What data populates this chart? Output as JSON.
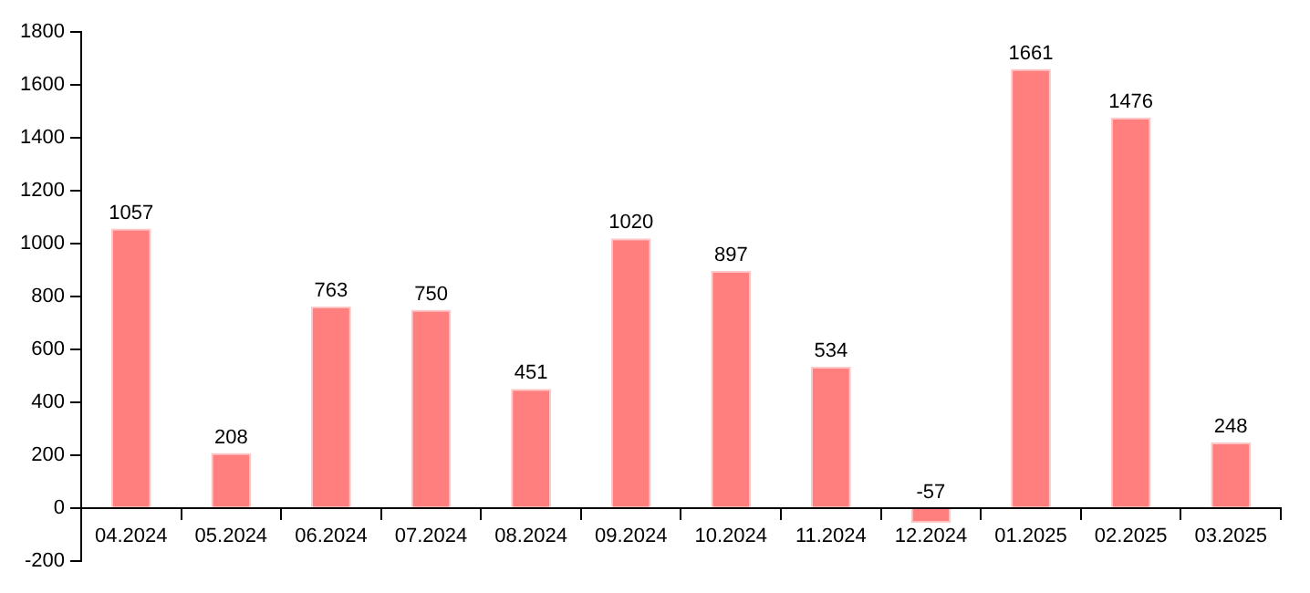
{
  "chart_data": {
    "type": "bar",
    "categories": [
      "04.2024",
      "05.2024",
      "06.2024",
      "07.2024",
      "08.2024",
      "09.2024",
      "10.2024",
      "11.2024",
      "12.2024",
      "01.2025",
      "02.2025",
      "03.2025"
    ],
    "values": [
      1057,
      208,
      763,
      750,
      451,
      1020,
      897,
      534,
      -57,
      1661,
      1476,
      248
    ],
    "color": "#ff7f7f",
    "ylim": [
      -200,
      1800
    ],
    "yticks": [
      -200,
      0,
      200,
      400,
      600,
      800,
      1000,
      1200,
      1400,
      1600,
      1800
    ],
    "data_labels": true,
    "grid": false,
    "legend": false
  }
}
